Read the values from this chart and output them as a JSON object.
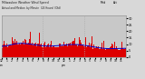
{
  "title_left": "Milwaukee Weather Wind Speed",
  "title_right": "Actual and Median  by Minute  (24 Hours) (Old)",
  "legend_median_label": "Med",
  "legend_actual_label": "Act",
  "bg_color": "#d8d8d8",
  "plot_bg": "#c8c8c8",
  "actual_color": "#dd0000",
  "median_color": "#0000cc",
  "ylim": [
    0,
    32
  ],
  "yticks": [
    0,
    5,
    10,
    15,
    20,
    25,
    30
  ],
  "ytick_labels": [
    "0",
    "5",
    "10",
    "15",
    "20",
    "25",
    "30"
  ],
  "n_points": 1440,
  "vline_color": "#aaaaaa",
  "vline_style": "dotted",
  "vline_positions": [
    480,
    960
  ],
  "legend_blue_color": "#0000dd",
  "legend_red_color": "#dd0000",
  "title_fontsize": 2.8,
  "tick_fontsize": 2.5,
  "seed": 42
}
